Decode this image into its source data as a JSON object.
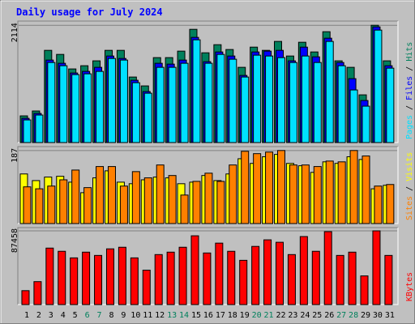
{
  "chart_data": [
    {
      "type": "bar",
      "title": "Daily usage for July 2024",
      "ylim": [
        0,
        2190
      ],
      "yticks": [
        2114
      ],
      "legend_separator": " / ",
      "series": [
        {
          "name": "Hits",
          "color": "#00805c",
          "values": [
            481,
            569,
            1662,
            1589,
            1327,
            1385,
            1473,
            1662,
            1662,
            1181,
            1021,
            1531,
            1531,
            1648,
            2041,
            1618,
            1764,
            1677,
            1356,
            1720,
            1662,
            1823,
            1560,
            1808,
            1633,
            1998,
            1473,
            1356,
            860,
            2114,
            1473
          ]
        },
        {
          "name": "Files",
          "color": "#0000ff",
          "values": [
            437,
            525,
            1487,
            1429,
            1254,
            1283,
            1356,
            1560,
            1516,
            1123,
            919,
            1429,
            1414,
            1487,
            1896,
            1458,
            1633,
            1560,
            1210,
            1633,
            1648,
            1662,
            1473,
            1720,
            1545,
            1881,
            1443,
            1152,
            758,
            2085,
            1385
          ]
        },
        {
          "name": "Pages",
          "color": "#00e0ff",
          "values": [
            408,
            496,
            1443,
            1385,
            1225,
            1239,
            1283,
            1516,
            1487,
            1079,
            889,
            1356,
            1356,
            1429,
            1852,
            1429,
            1589,
            1502,
            1181,
            1575,
            1560,
            1531,
            1443,
            1560,
            1443,
            1823,
            1385,
            948,
            656,
            2027,
            1341
          ]
        }
      ]
    },
    {
      "type": "bar",
      "ylim": [
        0,
        197
      ],
      "yticks": [
        187
      ],
      "legend_separator": " / ",
      "series": [
        {
          "name": "Visits",
          "color": "#ffff00",
          "values": [
            127,
            110,
            119,
            121,
            106,
            79,
            117,
            135,
            106,
            102,
            112,
            119,
            117,
            102,
            106,
            123,
            110,
            127,
            166,
            154,
            171,
            177,
            154,
            148,
            131,
            158,
            154,
            171,
            164,
            89,
            98
          ]
        },
        {
          "name": "Sites",
          "color": "#ff8000",
          "values": [
            94,
            89,
            96,
            112,
            137,
            92,
            146,
            146,
            96,
            133,
            117,
            150,
            123,
            73,
            108,
            129,
            108,
            150,
            185,
            179,
            183,
            187,
            150,
            150,
            146,
            160,
            158,
            187,
            173,
            96,
            100
          ]
        }
      ]
    },
    {
      "type": "bar",
      "ylim": [
        0,
        91300
      ],
      "yticks": [
        87458
      ],
      "categories": [
        "1",
        "2",
        "3",
        "4",
        "5",
        "6",
        "7",
        "8",
        "9",
        "10",
        "11",
        "12",
        "13",
        "14",
        "15",
        "16",
        "17",
        "18",
        "19",
        "20",
        "21",
        "22",
        "23",
        "24",
        "25",
        "26",
        "27",
        "28",
        "29",
        "30",
        "31"
      ],
      "highlight_categories": [
        "6",
        "7",
        "13",
        "14",
        "20",
        "21",
        "27",
        "28"
      ],
      "highlight_color": "#00805c",
      "series": [
        {
          "name": "KBytes",
          "color": "#ff0000",
          "values": [
            16500,
            27200,
            67000,
            63200,
            55400,
            62200,
            58300,
            66100,
            68000,
            55400,
            40800,
            59300,
            62200,
            68000,
            81600,
            61200,
            72900,
            63200,
            52500,
            69000,
            76800,
            73900,
            59300,
            80700,
            63200,
            86500,
            58300,
            62200,
            34000,
            87458,
            58300
          ]
        }
      ]
    }
  ]
}
